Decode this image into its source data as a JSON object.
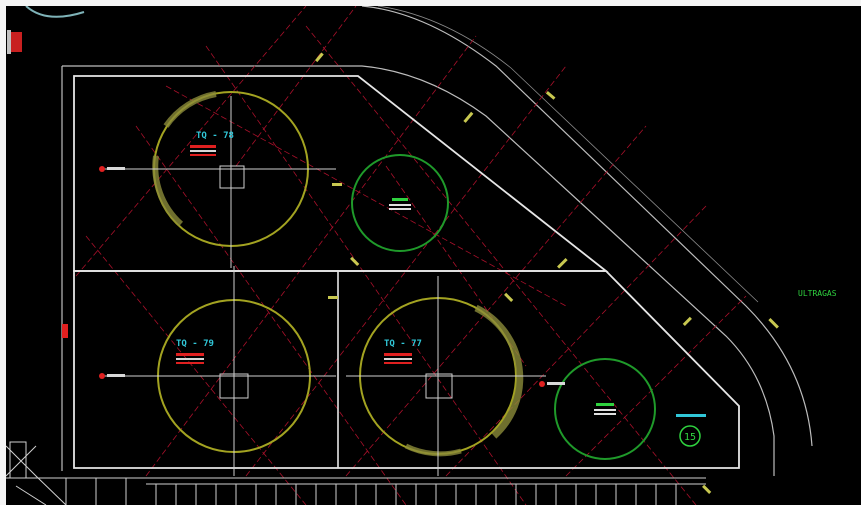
{
  "colors": {
    "background": "#000000",
    "boundary": "#d9d9d9",
    "gridline": "#b01020",
    "tank_yellow": "#a3a321",
    "tank_green": "#1f9a2a",
    "tag_cyan": "#31c7d8",
    "tag_green": "#2fd23f",
    "note_red": "#e02020"
  },
  "tanks": [
    {
      "id": "tank-78",
      "tag": "TQ - 78",
      "ring": "yellow"
    },
    {
      "id": "tank-79",
      "tag": "TQ - 79",
      "ring": "yellow"
    },
    {
      "id": "tank-77",
      "tag": "TQ - 77",
      "ring": "yellow"
    }
  ],
  "area_label": "ULTRAGAS",
  "badge_number": "15"
}
